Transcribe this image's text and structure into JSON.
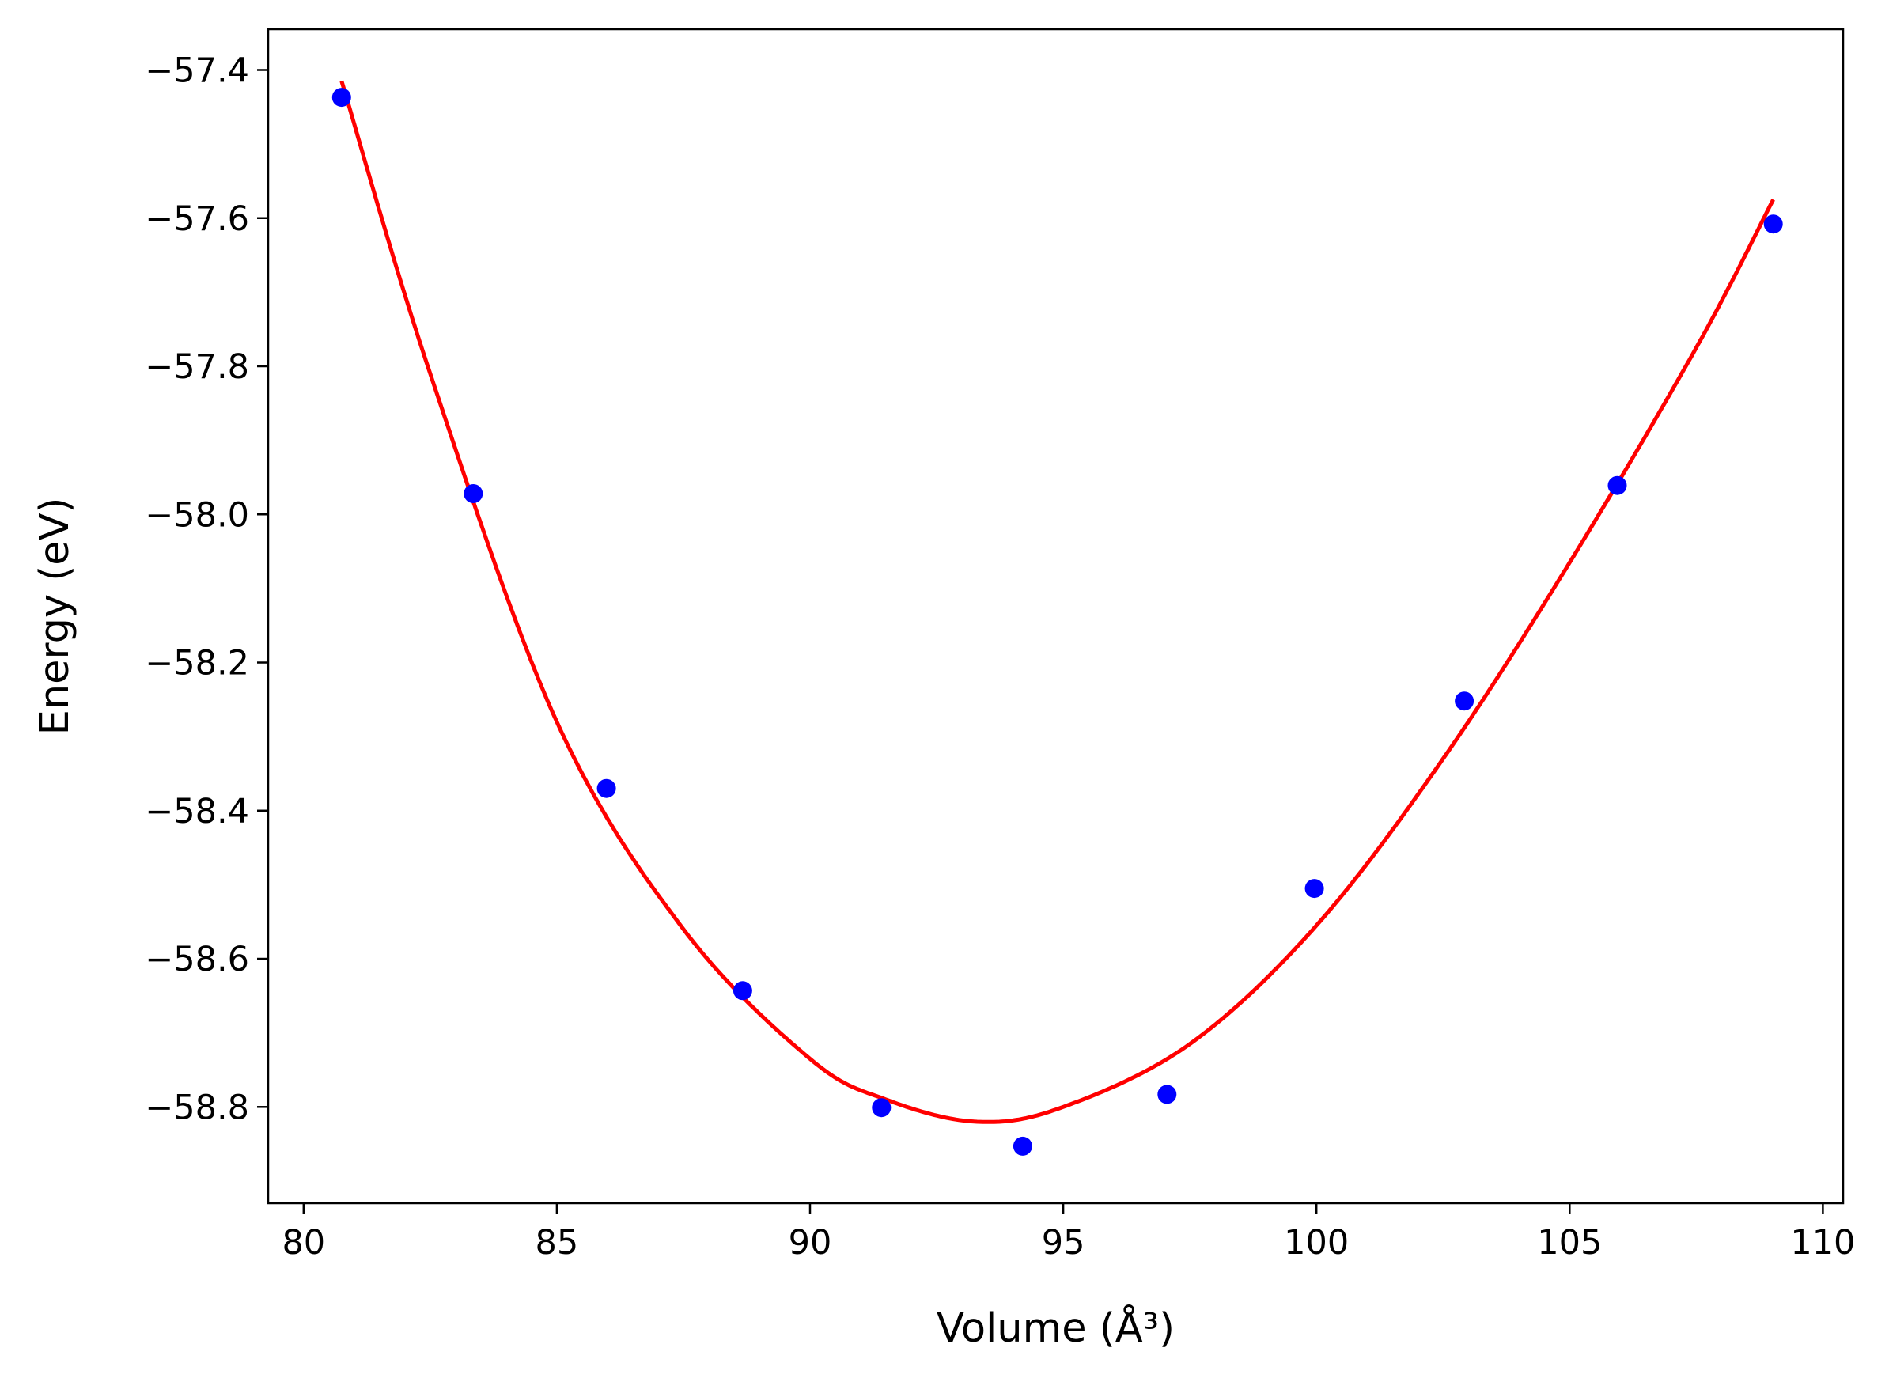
{
  "chart_data": {
    "type": "scatter",
    "title": "",
    "xlabel": "Volume (Å³)",
    "ylabel": "Energy (eV)",
    "xlim": [
      79.3,
      110.4
    ],
    "ylim": [
      -58.93,
      -57.345
    ],
    "x_ticks": [
      80,
      85,
      90,
      95,
      100,
      105,
      110
    ],
    "x_tick_labels": [
      "80",
      "85",
      "90",
      "95",
      "100",
      "105",
      "110"
    ],
    "y_ticks": [
      -57.4,
      -57.6,
      -57.8,
      -58.0,
      -58.2,
      -58.4,
      -58.6,
      -58.8
    ],
    "y_tick_labels": [
      "−57.4",
      "−57.6",
      "−57.8",
      "−58.0",
      "−58.2",
      "−58.4",
      "−58.6",
      "−58.8"
    ],
    "grid": false,
    "legend": "none",
    "colors": {
      "points": "#0000ff",
      "fit": "#ff0000",
      "axes": "#000000"
    },
    "series": [
      {
        "kind": "points",
        "x": [
          80.75,
          83.35,
          85.98,
          88.67,
          91.41,
          94.2,
          97.05,
          99.96,
          102.92,
          105.94,
          109.02
        ],
        "y": [
          -57.437,
          -57.972,
          -58.37,
          -58.643,
          -58.801,
          -58.853,
          -58.783,
          -58.505,
          -58.252,
          -57.961,
          -57.608
        ]
      },
      {
        "kind": "fit-curve",
        "x": [
          80.75,
          82.5,
          85,
          87.5,
          90,
          91.5,
          93.3,
          95,
          97.5,
          100,
          102.5,
          105,
          107.5,
          109.02
        ],
        "y": [
          -57.415,
          -57.81,
          -58.28,
          -58.56,
          -58.735,
          -58.79,
          -58.82,
          -58.8,
          -58.715,
          -58.555,
          -58.33,
          -58.065,
          -57.775,
          -57.575
        ]
      }
    ]
  }
}
